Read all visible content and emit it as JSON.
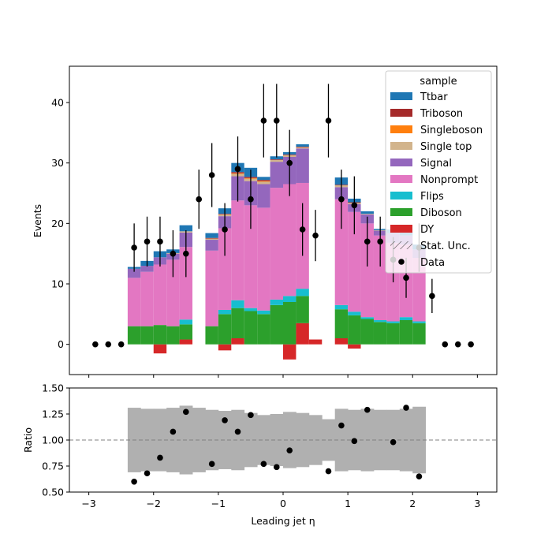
{
  "chart_data": [
    {
      "type": "bar",
      "panel": "main",
      "xlabel": "Leading jet  η",
      "ylabel": "Events",
      "xlim": [
        -3.3,
        3.3
      ],
      "ylim": [
        -5,
        46
      ],
      "yticks": [
        0,
        10,
        20,
        30,
        40
      ],
      "grid": false,
      "legend_title": "sample",
      "legend_position": "upper right",
      "bin_centers": [
        -2.3,
        -2.1,
        -1.9,
        -1.7,
        -1.5,
        -1.1,
        -0.9,
        -0.7,
        -0.5,
        -0.3,
        -0.1,
        0.1,
        0.3,
        0.5,
        0.9,
        1.1,
        1.3,
        1.5,
        1.7,
        1.9,
        2.1
      ],
      "stack_order_bottom_to_top": [
        "DY",
        "Diboson",
        "Flips",
        "Nonprompt",
        "Signal",
        "Single top",
        "Singleboson",
        "Triboson",
        "Ttbar"
      ],
      "series": [
        {
          "name": "Ttbar",
          "color": "#1f77b4",
          "values": [
            0.3,
            0.8,
            1.0,
            0.6,
            1.0,
            0.8,
            0.9,
            1.5,
            1.5,
            0.5,
            0.5,
            0.4,
            0.4,
            0,
            1.2,
            0.6,
            0.4,
            0.2,
            0.6,
            0.6,
            0.8
          ]
        },
        {
          "name": "Triboson",
          "color": "#a52a2a",
          "values": [
            0,
            0,
            0,
            0,
            0,
            0.1,
            0.1,
            0.2,
            0.2,
            0.2,
            0.1,
            0.1,
            0.1,
            0,
            0.1,
            0.1,
            0,
            0,
            0,
            0,
            0
          ]
        },
        {
          "name": "Singleboson",
          "color": "#ff7f0e",
          "values": [
            0,
            0,
            0,
            0,
            0,
            0,
            0,
            0.1,
            0.1,
            0.1,
            0,
            0,
            0,
            0,
            0,
            0,
            0,
            0,
            0,
            0,
            0
          ]
        },
        {
          "name": "Single top",
          "color": "#d2b48c",
          "values": [
            0,
            0,
            0,
            0.1,
            0.2,
            0.2,
            0.3,
            0.4,
            0.4,
            0.4,
            0.3,
            0.3,
            0.2,
            0,
            0.3,
            0.2,
            0.1,
            0.1,
            0,
            0,
            0
          ]
        },
        {
          "name": "Signal",
          "color": "#9467bd",
          "values": [
            1.5,
            1.0,
            1.2,
            1.0,
            2.4,
            1.8,
            2.0,
            4.0,
            4.0,
            3.9,
            4.3,
            4.5,
            5.7,
            0,
            2.0,
            1.3,
            1.5,
            0.8,
            1.6,
            1.5,
            1.4
          ]
        },
        {
          "name": "Nonprompt",
          "color": "#e377c2",
          "values": [
            8.0,
            9.0,
            10.0,
            11.0,
            12.0,
            12.5,
            13.5,
            16.5,
            17.0,
            17.0,
            18.5,
            18.5,
            17.5,
            0,
            17.5,
            16.5,
            15.5,
            14.0,
            13.0,
            12.0,
            10.5
          ]
        },
        {
          "name": "Flips",
          "color": "#17becf",
          "values": [
            0,
            0,
            0,
            0,
            0.8,
            0,
            0.7,
            1.3,
            0.5,
            0.6,
            0.9,
            1.0,
            1.2,
            0,
            0.7,
            0.6,
            0.3,
            0.3,
            0.3,
            0.5,
            0.3
          ]
        },
        {
          "name": "Diboson",
          "color": "#2ca02c",
          "values": [
            3.0,
            3.0,
            3.2,
            3.0,
            2.5,
            3.0,
            5.0,
            5.0,
            5.5,
            5.0,
            6.5,
            7.0,
            4.5,
            0,
            4.8,
            4.8,
            4.2,
            3.7,
            3.5,
            4.0,
            3.5
          ]
        },
        {
          "name": "DY",
          "color": "#d62728",
          "values": [
            0,
            0,
            -1.5,
            0,
            0.8,
            0,
            -1.0,
            1.0,
            0,
            0,
            0,
            -2.5,
            3.5,
            0.8,
            1.0,
            -0.7,
            0,
            0,
            0,
            0,
            0
          ]
        }
      ],
      "data_points": {
        "name": "Data",
        "x": [
          -2.9,
          -2.7,
          -2.5,
          -2.3,
          -2.1,
          -1.9,
          -1.7,
          -1.5,
          -1.3,
          -1.1,
          -0.9,
          -0.7,
          -0.5,
          -0.3,
          -0.1,
          0.1,
          0.3,
          0.5,
          0.7,
          0.9,
          1.1,
          1.3,
          1.5,
          1.7,
          1.9,
          2.1,
          2.3,
          2.5,
          2.7,
          2.9
        ],
        "y": [
          0,
          0,
          0,
          16,
          17,
          17,
          15,
          15,
          24,
          28,
          19,
          29,
          24,
          37,
          37,
          30,
          19,
          18,
          37,
          24,
          23,
          17,
          17,
          14,
          11,
          16,
          8,
          0,
          0,
          0
        ]
      },
      "legend_entries": [
        "Ttbar",
        "Triboson",
        "Singleboson",
        "Single top",
        "Signal",
        "Nonprompt",
        "Flips",
        "Diboson",
        "DY",
        "Stat. Unc.",
        "Data"
      ]
    },
    {
      "type": "scatter",
      "panel": "ratio",
      "xlabel": "Leading jet  η",
      "ylabel": "Ratio",
      "xlim": [
        -3.3,
        3.3
      ],
      "ylim": [
        0.5,
        1.5
      ],
      "yticks": [
        0.5,
        0.75,
        1.0,
        1.25,
        1.5
      ],
      "ytick_labels": [
        "0.50",
        "0.75",
        "1.00",
        "1.25",
        "1.50"
      ],
      "xticks": [
        -3,
        -2,
        -1,
        0,
        1,
        2,
        3
      ],
      "xtick_labels": [
        "−3",
        "−2",
        "−1",
        "0",
        "1",
        "2",
        "3"
      ],
      "reference_line": 1.0,
      "uncertainty_band": {
        "x_edges": [
          -2.4,
          -2.2,
          -2.0,
          -1.8,
          -1.6,
          -1.4,
          -1.2,
          -1.0,
          -0.8,
          -0.6,
          -0.4,
          -0.2,
          0.0,
          0.2,
          0.4,
          0.6,
          0.8,
          1.0,
          1.2,
          1.4,
          1.6,
          1.8,
          2.0,
          2.2
        ],
        "lo": [
          0.69,
          0.7,
          0.7,
          0.69,
          0.67,
          0.69,
          0.71,
          0.72,
          0.71,
          0.74,
          0.76,
          0.75,
          0.73,
          0.74,
          0.76,
          0.8,
          0.7,
          0.71,
          0.7,
          0.71,
          0.71,
          0.7,
          0.68,
          0.69
        ],
        "hi": [
          1.31,
          1.3,
          1.3,
          1.31,
          1.33,
          1.31,
          1.29,
          1.28,
          1.29,
          1.26,
          1.24,
          1.25,
          1.27,
          1.26,
          1.24,
          1.2,
          1.3,
          1.29,
          1.3,
          1.29,
          1.29,
          1.3,
          1.32,
          1.31
        ]
      },
      "points": {
        "x": [
          -2.3,
          -2.1,
          -1.9,
          -1.7,
          -1.5,
          -1.1,
          -0.9,
          -0.7,
          -0.5,
          -0.3,
          -0.1,
          0.1,
          0.7,
          0.9,
          1.1,
          1.3,
          1.7,
          1.9,
          2.1
        ],
        "y": [
          0.6,
          0.68,
          0.83,
          1.08,
          1.27,
          0.77,
          1.19,
          1.08,
          1.24,
          0.77,
          0.74,
          0.9,
          0.7,
          1.14,
          0.99,
          1.29,
          0.98,
          1.31,
          0.65
        ]
      }
    }
  ]
}
